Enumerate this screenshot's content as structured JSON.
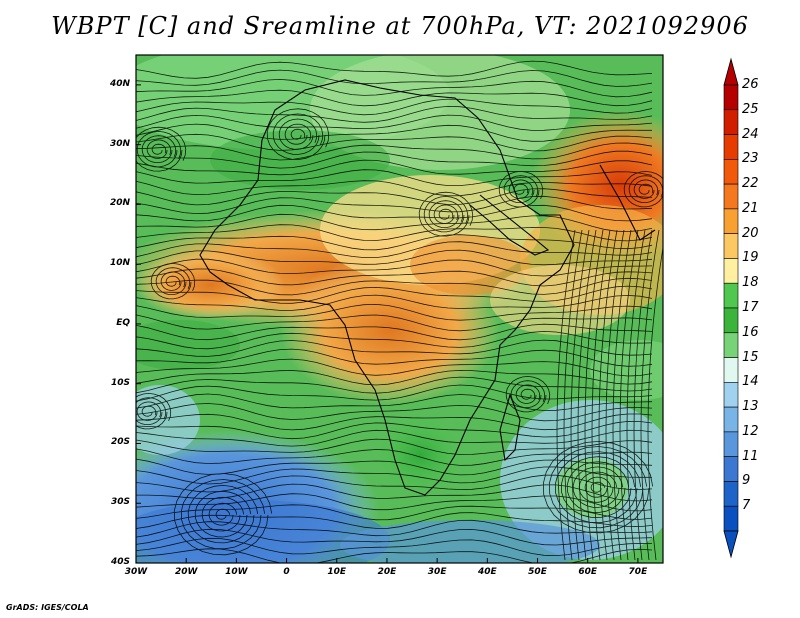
{
  "title": "WBPT [C] and Sreamline at 700hPa, VT: 2021092906",
  "credit": "GrADS: IGES/COLA",
  "map": {
    "lat_ticks": [
      "40N",
      "30N",
      "20N",
      "10N",
      "EQ",
      "10S",
      "20S",
      "30S",
      "40S"
    ],
    "lon_ticks": [
      "30W",
      "20W",
      "10W",
      "0",
      "10E",
      "20E",
      "30E",
      "40E",
      "50E",
      "60E",
      "70E"
    ],
    "lon_range": [
      -30,
      75
    ],
    "lat_range": [
      -40,
      45
    ]
  },
  "colorbar": {
    "labels": [
      "26",
      "25",
      "24",
      "23",
      "22",
      "21",
      "20",
      "19",
      "18",
      "17",
      "16",
      "15",
      "14",
      "13",
      "12",
      "11",
      "9",
      "7"
    ],
    "colors": [
      "#b40000",
      "#d21e00",
      "#e63c00",
      "#f05a0a",
      "#f5781e",
      "#f8a032",
      "#fcc864",
      "#fef0a0",
      "#50c850",
      "#3cb43c",
      "#78d278",
      "#e0f8f0",
      "#a0d2f0",
      "#78b4e6",
      "#5a96dc",
      "#3c78d2",
      "#1e64c8",
      "#0a50be"
    ]
  },
  "legend_features": {
    "warm_core_color": "#f07828",
    "cool_color": "#3c78d2",
    "green_color": "#50b450"
  }
}
